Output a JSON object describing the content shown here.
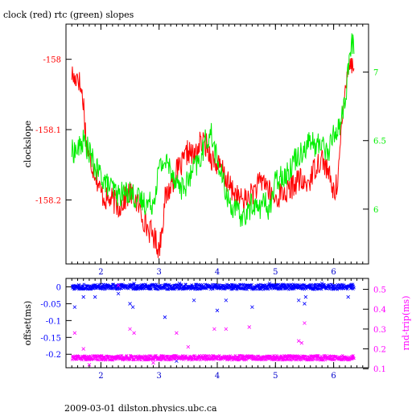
{
  "title": "clock (red) rtc (green) slopes",
  "footer": "2009-03-01 dilston.physics.ubc.ca",
  "colors": {
    "clock": "#ff0000",
    "rtc": "#00ee00",
    "offset": "#0000ff",
    "rndtrip": "#ff00ff",
    "frame": "#000000"
  },
  "chart_data": [
    {
      "type": "line",
      "title": "clock (red) rtc (green) slopes",
      "xlabel": "",
      "ylabel": "clockslope",
      "y2label": "",
      "xlim": [
        1.4,
        6.6
      ],
      "ylim": [
        -158.291,
        -157.95
      ],
      "y2lim": [
        5.6,
        7.35
      ],
      "x_ticks": [
        "2",
        "3",
        "4",
        "5",
        "6"
      ],
      "y_ticks": [
        "-158",
        "-158.1",
        "-158.2"
      ],
      "y2_ticks": [
        "7",
        "6.5",
        "6"
      ],
      "series": [
        {
          "name": "clock",
          "axis": "left",
          "color": "#ff0000",
          "x": [
            1.5,
            1.55,
            1.6,
            1.65,
            1.7,
            1.75,
            1.8,
            1.9,
            2.0,
            2.1,
            2.2,
            2.3,
            2.4,
            2.5,
            2.6,
            2.7,
            2.8,
            2.9,
            3.0,
            3.05,
            3.1,
            3.2,
            3.3,
            3.4,
            3.5,
            3.6,
            3.7,
            3.8,
            3.9,
            4.0,
            4.1,
            4.2,
            4.3,
            4.4,
            4.5,
            4.6,
            4.7,
            4.8,
            4.9,
            5.0,
            5.1,
            5.2,
            5.3,
            5.4,
            5.5,
            5.6,
            5.7,
            5.8,
            5.9,
            6.0,
            6.05,
            6.1,
            6.15,
            6.2,
            6.25,
            6.3,
            6.35
          ],
          "values": [
            -158.02,
            -158.03,
            -158.02,
            -158.04,
            -158.06,
            -158.12,
            -158.14,
            -158.16,
            -158.19,
            -158.2,
            -158.2,
            -158.21,
            -158.2,
            -158.19,
            -158.2,
            -158.22,
            -158.24,
            -158.25,
            -158.27,
            -158.24,
            -158.2,
            -158.18,
            -158.16,
            -158.15,
            -158.13,
            -158.14,
            -158.12,
            -158.12,
            -158.14,
            -158.15,
            -158.16,
            -158.18,
            -158.19,
            -158.2,
            -158.2,
            -158.19,
            -158.18,
            -158.17,
            -158.19,
            -158.2,
            -158.19,
            -158.19,
            -158.18,
            -158.17,
            -158.18,
            -158.17,
            -158.15,
            -158.14,
            -158.16,
            -158.19,
            -158.18,
            -158.14,
            -158.09,
            -158.04,
            -158.0,
            -158.01,
            -158.0
          ]
        },
        {
          "name": "rtc",
          "axis": "right",
          "color": "#00ee00",
          "x": [
            1.5,
            1.6,
            1.7,
            1.8,
            1.9,
            2.0,
            2.1,
            2.2,
            2.3,
            2.4,
            2.5,
            2.6,
            2.7,
            2.8,
            2.9,
            3.0,
            3.1,
            3.2,
            3.3,
            3.4,
            3.5,
            3.6,
            3.7,
            3.8,
            3.9,
            4.0,
            4.1,
            4.2,
            4.3,
            4.4,
            4.5,
            4.6,
            4.7,
            4.8,
            4.9,
            5.0,
            5.1,
            5.2,
            5.3,
            5.4,
            5.5,
            5.6,
            5.7,
            5.8,
            5.9,
            6.0,
            6.1,
            6.2,
            6.25,
            6.3,
            6.35
          ],
          "values": [
            6.42,
            6.43,
            6.5,
            6.42,
            6.3,
            6.25,
            6.18,
            6.15,
            6.1,
            6.12,
            6.13,
            6.08,
            6.06,
            6.04,
            6.05,
            6.3,
            6.35,
            6.3,
            6.2,
            6.15,
            6.2,
            6.3,
            6.35,
            6.5,
            6.55,
            6.35,
            6.2,
            6.05,
            6.0,
            5.95,
            5.95,
            6.05,
            6.0,
            6.05,
            6.0,
            6.2,
            6.25,
            6.25,
            6.35,
            6.4,
            6.45,
            6.5,
            6.45,
            6.5,
            6.4,
            6.55,
            6.6,
            6.8,
            7.0,
            7.2,
            7.2
          ]
        }
      ]
    },
    {
      "type": "scatter",
      "xlabel": "",
      "ylabel": "offset(ms)",
      "y2label": "rnd-trip(ms)",
      "xlim": [
        1.4,
        6.6
      ],
      "ylim": [
        -0.24,
        0.025
      ],
      "y2lim": [
        0.105,
        0.555
      ],
      "x_ticks": [
        "2",
        "3",
        "4",
        "5",
        "6"
      ],
      "y_ticks": [
        "0",
        "-0.05",
        "-0.1",
        "-0.15",
        "-0.2"
      ],
      "y2_ticks": [
        "0.5",
        "0.4",
        "0.3",
        "0.2",
        "0.1"
      ],
      "series": [
        {
          "name": "offset",
          "axis": "left",
          "color": "#0000ff",
          "band": {
            "x": [
              1.5,
              6.35
            ],
            "center": 0.0,
            "spread": 0.008
          },
          "outliers": {
            "x": [
              1.55,
              1.7,
              1.9,
              2.3,
              2.5,
              2.55,
              3.1,
              3.3,
              3.6,
              4.0,
              4.15,
              4.6,
              5.4,
              5.5,
              5.52,
              6.25,
              1.62,
              2.57,
              3.35,
              3.95,
              4.9,
              5.8,
              6.3
            ],
            "values": [
              -0.06,
              -0.03,
              -0.03,
              -0.02,
              -0.05,
              -0.06,
              -0.09,
              -0.22,
              -0.04,
              -0.07,
              -0.04,
              -0.06,
              -0.04,
              -0.05,
              -0.03,
              -0.03,
              0.005,
              0.01,
              0.01,
              0.005,
              0.01,
              0.01,
              0.005
            ]
          }
        },
        {
          "name": "rnd-trip",
          "axis": "right",
          "color": "#ff00ff",
          "band": {
            "x": [
              1.5,
              6.35
            ],
            "center": 0.155,
            "spread": 0.012
          },
          "outliers": {
            "x": [
              1.55,
              1.7,
              2.3,
              2.5,
              2.57,
              3.3,
              3.5,
              3.95,
              4.15,
              4.55,
              5.4,
              5.45,
              5.5,
              1.8,
              2.9
            ],
            "values": [
              0.28,
              0.2,
              0.52,
              0.3,
              0.28,
              0.28,
              0.21,
              0.3,
              0.3,
              0.31,
              0.24,
              0.23,
              0.33,
              0.12,
              0.13
            ]
          }
        }
      ]
    }
  ]
}
